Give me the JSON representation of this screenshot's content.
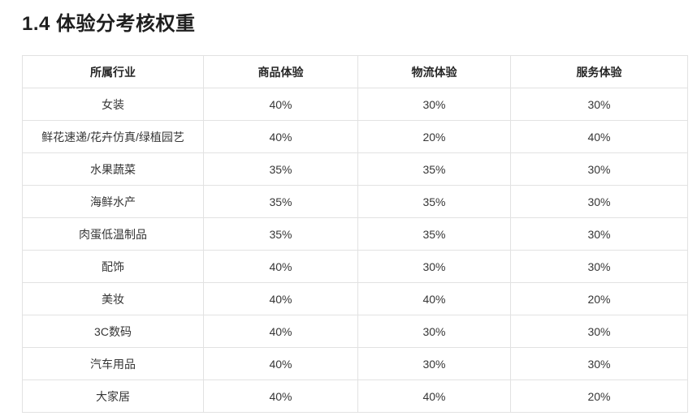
{
  "title": "1.4 体验分考核权重",
  "table": {
    "headers": [
      "所属行业",
      "商品体验",
      "物流体验",
      "服务体验"
    ],
    "rows": [
      [
        "女装",
        "40%",
        "30%",
        "30%"
      ],
      [
        "鲜花速递/花卉仿真/绿植园艺",
        "40%",
        "20%",
        "40%"
      ],
      [
        "水果蔬菜",
        "35%",
        "35%",
        "30%"
      ],
      [
        "海鲜水产",
        "35%",
        "35%",
        "30%"
      ],
      [
        "肉蛋低温制品",
        "35%",
        "35%",
        "30%"
      ],
      [
        "配饰",
        "40%",
        "30%",
        "30%"
      ],
      [
        "美妆",
        "40%",
        "40%",
        "20%"
      ],
      [
        "3C数码",
        "40%",
        "30%",
        "30%"
      ],
      [
        "汽车用品",
        "40%",
        "30%",
        "30%"
      ],
      [
        "大家居",
        "40%",
        "40%",
        "20%"
      ]
    ]
  },
  "colors": {
    "border": "#e2e2e2",
    "title_text": "#1f1f1f",
    "header_text": "#262626",
    "body_text": "#363636",
    "background": "#ffffff"
  }
}
